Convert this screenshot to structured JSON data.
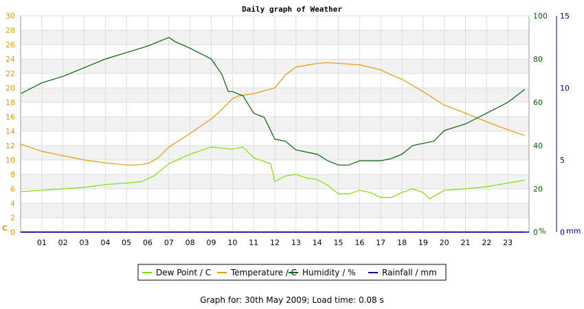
{
  "chart_data": {
    "type": "line",
    "title": "Daily graph of Weather",
    "x_ticks": [
      "01",
      "02",
      "03",
      "04",
      "05",
      "06",
      "07",
      "08",
      "09",
      "10",
      "11",
      "12",
      "13",
      "14",
      "15",
      "16",
      "17",
      "18",
      "19",
      "20",
      "21",
      "22",
      "23"
    ],
    "xlim": [
      0,
      24
    ],
    "left_axis": {
      "unit": "C",
      "ylim": [
        0,
        30
      ],
      "ticks": [
        0,
        2,
        4,
        6,
        8,
        10,
        12,
        14,
        16,
        18,
        20,
        22,
        24,
        26,
        28,
        30
      ],
      "color": "#e59a00"
    },
    "right_axis_humidity": {
      "unit": "%",
      "ylim": [
        0,
        100
      ],
      "ticks": [
        0,
        20,
        40,
        60,
        80,
        100
      ],
      "color": "#006400"
    },
    "right_axis_rainfall": {
      "unit": "mm",
      "ylim": [
        0,
        15
      ],
      "ticks": [
        0,
        5,
        10,
        15
      ],
      "color": "#000099"
    },
    "grid": true,
    "legend_position": "bottom-center",
    "series": [
      {
        "name": "Dew Point / C",
        "axis": "left",
        "color": "#7fe000",
        "x": [
          0,
          1,
          2,
          3,
          4,
          5,
          5.7,
          6.3,
          7,
          8,
          9,
          10,
          10.5,
          11,
          11.8,
          12,
          12.5,
          13,
          13.5,
          14,
          14.5,
          15,
          15.5,
          16,
          16.5,
          17,
          17.5,
          18,
          18.5,
          19,
          19.3,
          20,
          21,
          22,
          23,
          23.8
        ],
        "y": [
          5.6,
          5.8,
          6.0,
          6.2,
          6.6,
          6.8,
          7.0,
          7.8,
          9.5,
          10.8,
          11.8,
          11.5,
          11.8,
          10.3,
          9.5,
          7.0,
          7.8,
          8.0,
          7.5,
          7.3,
          6.5,
          5.3,
          5.3,
          5.8,
          5.5,
          4.8,
          4.8,
          5.5,
          6.0,
          5.5,
          4.6,
          5.8,
          6.0,
          6.3,
          6.8,
          7.2
        ]
      },
      {
        "name": "Temperature / C",
        "axis": "left",
        "color": "#e59a00",
        "x": [
          0,
          1,
          2,
          3,
          4,
          5,
          5.5,
          6,
          6.5,
          7,
          8,
          9,
          9.5,
          10,
          10.3,
          11,
          12,
          12.5,
          13,
          14,
          14.5,
          15,
          16,
          17,
          17.5,
          18,
          19,
          20,
          21,
          22,
          23,
          23.8
        ],
        "y": [
          12.2,
          11.2,
          10.6,
          10.0,
          9.6,
          9.3,
          9.3,
          9.5,
          10.3,
          11.8,
          13.7,
          15.7,
          17.0,
          18.5,
          18.9,
          19.2,
          20.0,
          21.8,
          22.9,
          23.4,
          23.5,
          23.4,
          23.2,
          22.5,
          21.8,
          21.2,
          19.5,
          17.6,
          16.5,
          15.3,
          14.2,
          13.4
        ],
        "unit": "C"
      },
      {
        "name": "Humidity / %",
        "axis": "right_humidity",
        "color": "#006400",
        "x": [
          0,
          1,
          2,
          3,
          4,
          5,
          6,
          6.5,
          7,
          7.3,
          8,
          9,
          9.5,
          9.8,
          10,
          10.5,
          11,
          11.5,
          12,
          12.5,
          13,
          14,
          14.5,
          15,
          15.5,
          16,
          17,
          17.5,
          18,
          18.5,
          19,
          19.5,
          20,
          21,
          22,
          23,
          23.8
        ],
        "y": [
          64,
          69,
          72,
          76,
          80,
          83,
          86,
          88,
          90,
          88,
          85,
          80,
          73,
          65,
          65,
          63,
          55,
          53,
          43,
          42,
          38,
          36,
          33,
          31,
          31,
          33,
          33,
          34,
          36,
          40,
          41,
          42,
          47,
          50,
          55,
          60,
          66
        ]
      },
      {
        "name": "Rainfall / mm",
        "axis": "right_rainfall",
        "color": "#000099",
        "x": [
          0,
          23.8
        ],
        "y": [
          0,
          0
        ]
      }
    ]
  },
  "footer": {
    "text": "Graph for: 30th May 2009; Load time: 0.08 s"
  }
}
